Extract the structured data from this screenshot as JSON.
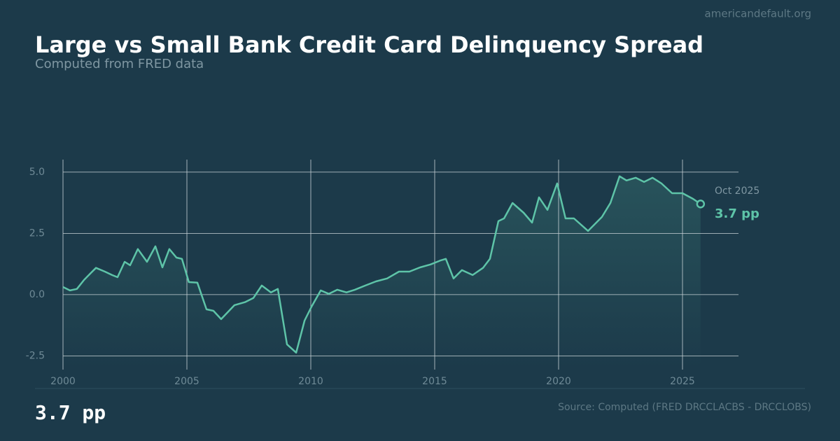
{
  "site": "americandefault.org",
  "chart_data": {
    "type": "line",
    "title": "Large vs Small Bank Credit Card Delinquency Spread",
    "subtitle": "Computed from FRED data",
    "source": "Source: Computed (FRED DRCCLACBS - DRCCLOBS)",
    "annotation": {
      "date": "Oct 2025",
      "value": "3.7 pp"
    },
    "xlim": [
      2000,
      2027.26
    ],
    "xticks": [
      2000,
      2005,
      2010,
      2015,
      2020,
      2025
    ],
    "ylim": [
      -3.06,
      5.51
    ],
    "yticks": [
      -2.5,
      {
        "value": 0,
        "label": "0.0"
      },
      2.5,
      {
        "value": 5,
        "label": "5.0"
      }
    ],
    "grid": true,
    "series": [
      {
        "name": "Spread",
        "color": "#5ec4a8",
        "x": [
          2000.0,
          2000.28,
          2000.56,
          2000.85,
          2001.13,
          2001.33,
          2001.69,
          2001.98,
          2002.2,
          2002.49,
          2002.71,
          2003.02,
          2003.39,
          2003.73,
          2004.01,
          2004.29,
          2004.58,
          2004.8,
          2005.08,
          2005.42,
          2005.79,
          2006.07,
          2006.38,
          2006.92,
          2007.34,
          2007.68,
          2008.02,
          2008.39,
          2008.67,
          2009.04,
          2009.41,
          2009.75,
          2010.03,
          2010.4,
          2010.73,
          2011.07,
          2011.44,
          2011.78,
          2012.2,
          2012.63,
          2013.08,
          2013.56,
          2013.98,
          2014.41,
          2014.83,
          2015.25,
          2015.45,
          2015.76,
          2016.1,
          2016.53,
          2016.95,
          2017.23,
          2017.57,
          2017.8,
          2018.14,
          2018.59,
          2018.93,
          2019.21,
          2019.55,
          2019.94,
          2020.28,
          2020.62,
          2021.19,
          2021.75,
          2022.09,
          2022.46,
          2022.74,
          2023.11,
          2023.45,
          2023.79,
          2024.15,
          2024.58,
          2025.0,
          2025.42,
          2025.73
        ],
        "values": [
          0.31,
          0.17,
          0.23,
          0.6,
          0.89,
          1.09,
          0.94,
          0.8,
          0.71,
          1.34,
          1.2,
          1.86,
          1.34,
          1.97,
          1.11,
          1.86,
          1.51,
          1.46,
          0.51,
          0.49,
          -0.6,
          -0.66,
          -1.0,
          -0.43,
          -0.31,
          -0.14,
          0.37,
          0.09,
          0.23,
          -2.03,
          -2.37,
          -1.06,
          -0.49,
          0.17,
          0.03,
          0.2,
          0.09,
          0.2,
          0.37,
          0.54,
          0.66,
          0.94,
          0.94,
          1.11,
          1.23,
          1.4,
          1.46,
          0.66,
          1.0,
          0.8,
          1.09,
          1.46,
          3.0,
          3.11,
          3.74,
          3.34,
          2.94,
          3.97,
          3.46,
          4.54,
          3.11,
          3.11,
          2.6,
          3.17,
          3.74,
          4.83,
          4.66,
          4.77,
          4.6,
          4.77,
          4.54,
          4.14,
          4.14,
          3.91,
          3.7
        ]
      }
    ]
  }
}
